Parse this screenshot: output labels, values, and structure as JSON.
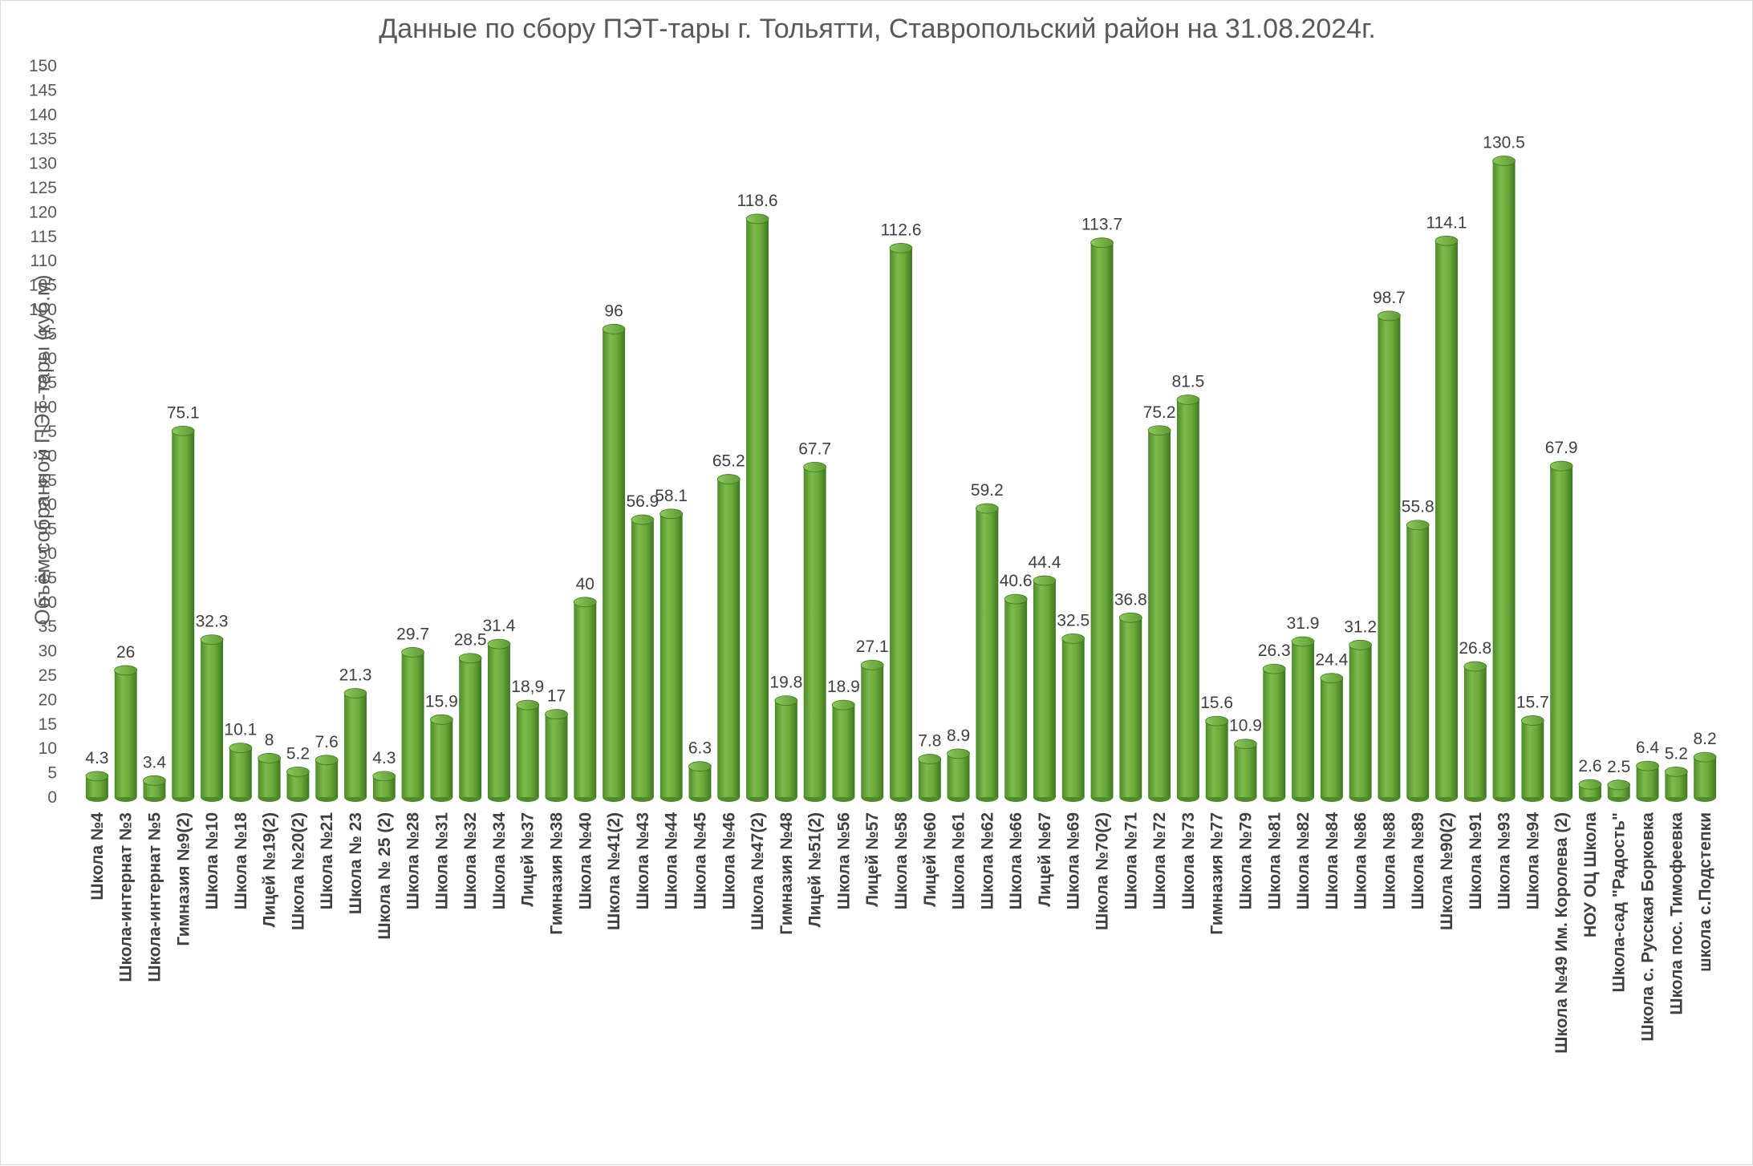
{
  "chart_data": {
    "type": "bar",
    "title": "Данные по сбору ПЭТ-тары г. Тольятти, Ставропольский район на 31.08.2024г.",
    "ylabel": "Объём собранной ПЭТ-тары (куб.м)",
    "ylim": [
      0,
      150
    ],
    "yticks": [
      0,
      5,
      10,
      15,
      20,
      25,
      30,
      35,
      40,
      45,
      50,
      55,
      60,
      65,
      70,
      75,
      80,
      85,
      90,
      95,
      100,
      105,
      110,
      115,
      120,
      125,
      130,
      135,
      140,
      145,
      150
    ],
    "grid": false,
    "legend": "none",
    "bar_color": "#6aaa3a",
    "categories": [
      "Школа №4",
      "Школа-интернат №3",
      "Школа-интернат №5",
      "Гимназия №9(2)",
      "Школа №10",
      "Школа №18",
      "Лицей №19(2)",
      "Школа №20(2)",
      "Школа №21",
      "Школа № 23",
      "Школа № 25 (2)",
      "Школа №28",
      "Школа №31",
      "Школа №32",
      "Школа №34",
      "Лицей №37",
      "Гимназия №38",
      "Школа №40",
      "Школа №41(2)",
      "Школа №43",
      "Школа №44",
      "Школа №45",
      "Школа №46",
      "Школа №47(2)",
      "Гимназия №48",
      "Лицей №51(2)",
      "Школа №56",
      "Лицей №57",
      "Школа №58",
      "Лицей №60",
      "Школа №61",
      "Школа №62",
      "Школа №66",
      "Лицей №67",
      "Школа №69",
      "Школа №70(2)",
      "Школа №71",
      "Школа №72",
      "Школа №73",
      "Гимназия №77",
      "Школа №79",
      "Школа №81",
      "Школа №82",
      "Школа №84",
      "Школа №86",
      "Школа №88",
      "Школа №89",
      "Школа №90(2)",
      "Школа №91",
      "Школа №93",
      "Школа №94",
      "Школа №49 Им. Королева (2)",
      "НОУ ОЦ Школа",
      "Школа-сад \"Радость\"",
      "Школа с. Русская Борковка",
      "Школа пос. Тимофеевка",
      "школа с.Подстепки"
    ],
    "values": [
      4.3,
      26,
      3.4,
      75.1,
      32.3,
      10.1,
      8,
      5.2,
      7.6,
      21.3,
      4.3,
      29.7,
      15.9,
      28.5,
      31.4,
      18.9,
      17,
      40,
      96,
      56.9,
      58.1,
      6.3,
      65.2,
      118.6,
      19.8,
      67.7,
      18.9,
      27.1,
      112.6,
      7.8,
      8.9,
      59.2,
      40.6,
      44.4,
      32.5,
      113.7,
      36.8,
      75.2,
      81.5,
      15.6,
      10.9,
      26.3,
      31.9,
      24.4,
      31.2,
      98.7,
      55.8,
      114.1,
      26.8,
      130.5,
      15.7,
      67.9,
      2.6,
      2.5,
      6.4,
      5.2,
      8.2
    ],
    "data_labels": [
      "4.3",
      "26",
      "3.4",
      "75.1",
      "32.3",
      "10.1",
      "8",
      "5.2",
      "7.6",
      "21.3",
      "4.3",
      "29.7",
      "15.9",
      "28.5",
      "31.4",
      "18,9",
      "17",
      "40",
      "96",
      "56.9",
      "58.1",
      "6.3",
      "65.2",
      "118.6",
      "19.8",
      "67.7",
      "18.9",
      "27.1",
      "112.6",
      "7.8",
      "8.9",
      "59.2",
      "40.6",
      "44.4",
      "32.5",
      "113.7",
      "36.8",
      "75.2",
      "81.5",
      "15.6",
      "10.9",
      "26.3",
      "31.9",
      "24.4",
      "31.2",
      "98.7",
      "55.8",
      "114.1",
      "26.8",
      "130.5",
      "15.7",
      "67.9",
      "2.6",
      "2.5",
      "6.4",
      "5.2",
      "8.2"
    ]
  }
}
